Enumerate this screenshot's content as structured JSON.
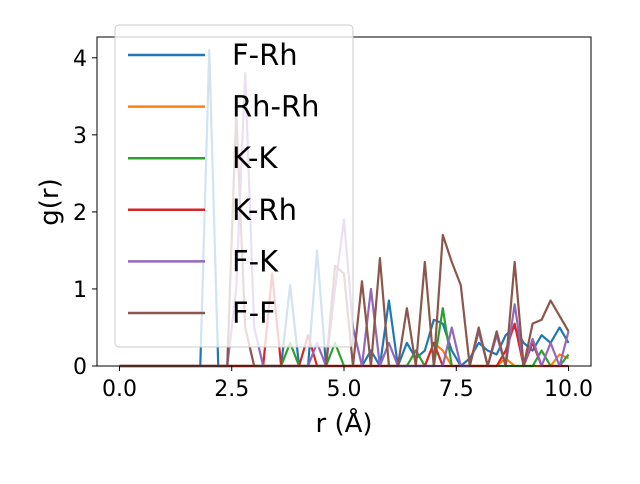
{
  "chart_data": {
    "type": "line",
    "xlabel": "r (Å)",
    "ylabel": "g(r)",
    "x": [
      0,
      0.2,
      0.4,
      0.6,
      0.8,
      1.0,
      1.2,
      1.4,
      1.6,
      1.8,
      2.0,
      2.2,
      2.4,
      2.6,
      2.8,
      3.0,
      3.2,
      3.4,
      3.6,
      3.8,
      4.0,
      4.2,
      4.4,
      4.6,
      4.8,
      5.0,
      5.2,
      5.4,
      5.6,
      5.8,
      6.0,
      6.2,
      6.4,
      6.6,
      6.8,
      7.0,
      7.2,
      7.4,
      7.6,
      7.8,
      8.0,
      8.2,
      8.4,
      8.6,
      8.8,
      9.0,
      9.2,
      9.4,
      9.6,
      9.8,
      10.0
    ],
    "series": [
      {
        "name": "F-Rh",
        "color": "#1f77b4",
        "values": [
          0,
          0,
          0,
          0,
          0,
          0,
          0,
          0,
          0,
          0,
          4.1,
          0,
          0,
          0,
          0,
          0,
          0,
          0,
          0,
          1.05,
          0,
          0,
          1.5,
          0,
          0,
          0,
          0,
          0,
          0.2,
          0,
          0.85,
          0,
          0.3,
          0.1,
          0.2,
          0.6,
          0.55,
          0.2,
          0,
          0.1,
          0.3,
          0.2,
          0.15,
          0.4,
          0.5,
          0.3,
          0.2,
          0.4,
          0.3,
          0.5,
          0.3
        ]
      },
      {
        "name": "Rh-Rh",
        "color": "#ff7f0e",
        "values": [
          0,
          0,
          0,
          0,
          0,
          0,
          0,
          0,
          0,
          0,
          0,
          0,
          0,
          0,
          0,
          0,
          0,
          0,
          0,
          0,
          0,
          0,
          0,
          0,
          0,
          0,
          0,
          0,
          0,
          0,
          0,
          0,
          0,
          0,
          0,
          0.3,
          0.2,
          0,
          0,
          0,
          0,
          0,
          0,
          0.1,
          0,
          0,
          0,
          0,
          0,
          0.15,
          0.1
        ]
      },
      {
        "name": "K-K",
        "color": "#2ca02c",
        "values": [
          0,
          0,
          0,
          0,
          0,
          0,
          0,
          0,
          0,
          0,
          0,
          0,
          0,
          0,
          0,
          0,
          0,
          0,
          0,
          0.3,
          0,
          0,
          0,
          0,
          0.3,
          0,
          0,
          0,
          0,
          0,
          0,
          0,
          0,
          0.2,
          0,
          0,
          0.75,
          0,
          0,
          0,
          0,
          0,
          0,
          0,
          0,
          0,
          0,
          0.2,
          0,
          0,
          0.15
        ]
      },
      {
        "name": "K-Rh",
        "color": "#d62728",
        "values": [
          0,
          0,
          0,
          0,
          0,
          0,
          0,
          0,
          0,
          0,
          0,
          0,
          0,
          0,
          0,
          0,
          0,
          1.2,
          0,
          0,
          0,
          0.4,
          0,
          0,
          0,
          0,
          0,
          0,
          0,
          0,
          0,
          0,
          0,
          0,
          0,
          0.3,
          0,
          0,
          0,
          0,
          0,
          0,
          0,
          0.2,
          0.55,
          0,
          0.3,
          0,
          0,
          0,
          0
        ]
      },
      {
        "name": "F-K",
        "color": "#9467bd",
        "values": [
          0,
          0,
          0,
          0,
          0,
          0,
          0,
          0,
          0,
          0,
          0,
          0,
          0,
          1.0,
          3.8,
          0.5,
          0,
          0,
          0,
          0,
          0,
          0,
          0.3,
          0,
          1.0,
          1.9,
          0.5,
          0,
          1.0,
          0,
          0.3,
          0,
          0,
          0,
          0,
          0,
          0,
          0.5,
          0,
          0,
          0.45,
          0,
          0.4,
          0,
          0.8,
          0,
          0.35,
          0,
          0.3,
          0,
          0.45
        ]
      },
      {
        "name": "F-F",
        "color": "#8c564b",
        "values": [
          0,
          0,
          0,
          0,
          0,
          0,
          0,
          0,
          0,
          0,
          0,
          0,
          0,
          3.3,
          0.5,
          0,
          0,
          0,
          0,
          0,
          0,
          0,
          0,
          0,
          1.3,
          1.2,
          0,
          1.1,
          0,
          1.4,
          0,
          0,
          0.75,
          0,
          1.35,
          0,
          1.7,
          1.35,
          1.05,
          0,
          0.5,
          0,
          0.45,
          0,
          1.35,
          0,
          0.55,
          0.6,
          0.85,
          0.65,
          0.45
        ]
      }
    ],
    "xlim": [
      -0.5,
      10.5
    ],
    "ylim": [
      0,
      4.27
    ],
    "xticks": [
      {
        "value": 0,
        "label": "0.0"
      },
      {
        "value": 2.5,
        "label": "2.5"
      },
      {
        "value": 5,
        "label": "5.0"
      },
      {
        "value": 7.5,
        "label": "7.5"
      },
      {
        "value": 10,
        "label": "10.0"
      }
    ],
    "yticks": [
      0,
      1,
      2,
      3,
      4
    ],
    "legend": "upper left"
  }
}
